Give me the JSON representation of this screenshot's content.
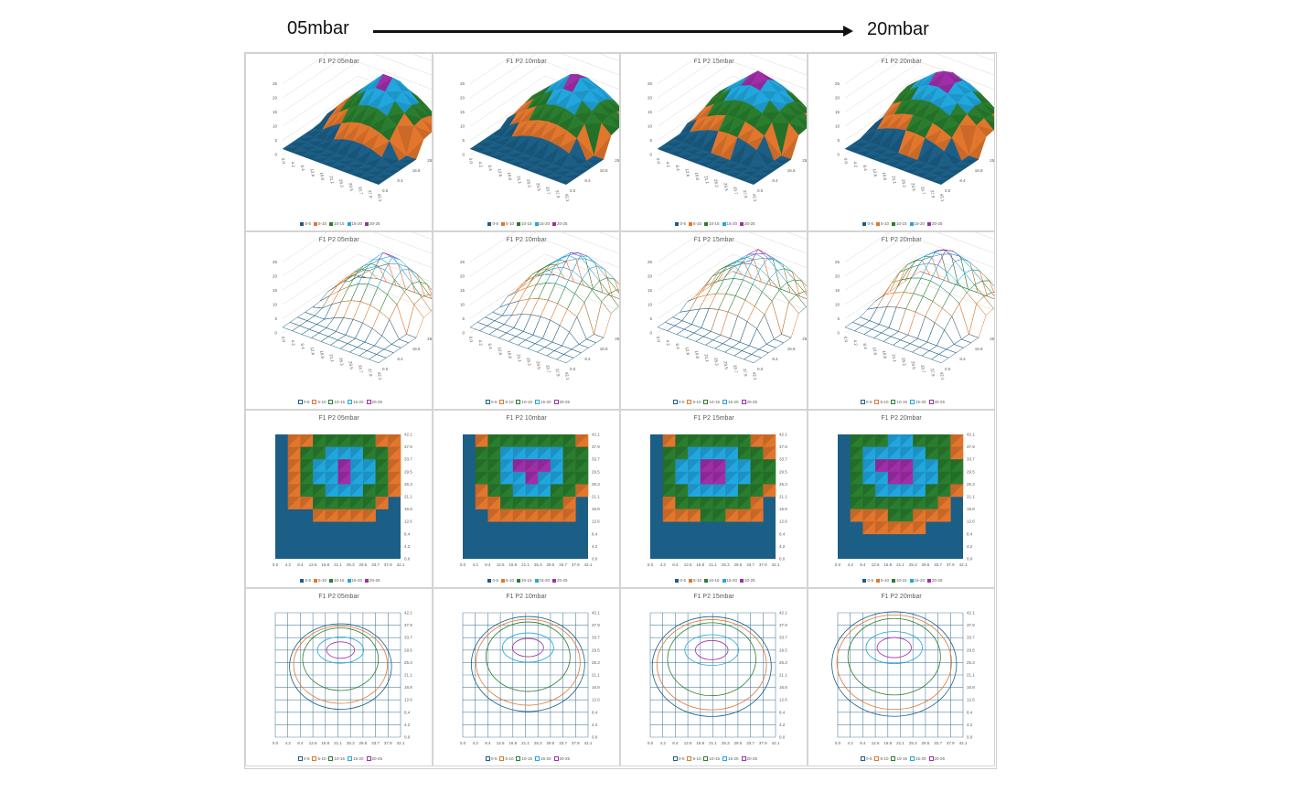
{
  "header": {
    "left_label": "05mbar",
    "right_label": "20mbar",
    "arrow": "arrow-right"
  },
  "colors": {
    "band_0_5": "#1b5e86",
    "band_5_10": "#e2762d",
    "band_10_15": "#2a7d2e",
    "band_15_20": "#22a6de",
    "band_20_25": "#a02ea8",
    "dark_shade": "#0f3b55",
    "grid_line": "#d9d9d9"
  },
  "legend": [
    "0-5",
    "5-10",
    "10-15",
    "15-20",
    "20-25"
  ],
  "panels": {
    "titles": [
      "F1 P2 05mbar",
      "F1 P2 10mbar",
      "F1 P2 15mbar",
      "F1 P2 20mbar"
    ]
  },
  "chart_data": [
    {
      "type": "surface-3d",
      "row": 1,
      "titles": [
        "F1 P2 05mbar",
        "F1 P2 10mbar",
        "F1 P2 15mbar",
        "F1 P2 20mbar"
      ],
      "z_ticks": [
        "0",
        "5",
        "10",
        "15",
        "20",
        "25"
      ],
      "x_ticks": [
        "0.0",
        "4.2",
        "8.4",
        "12.6",
        "16.8",
        "21.1",
        "25.3",
        "29.5",
        "33.7",
        "37.9",
        "42.1"
      ],
      "y_ticks": [
        "0.0",
        "8.4",
        "16.8",
        "25.3",
        "33.7",
        "42.1"
      ],
      "legend": [
        "0-5",
        "5-10",
        "10-15",
        "15-20",
        "20-25"
      ],
      "zlim": [
        0,
        25
      ]
    },
    {
      "type": "wireframe-3d",
      "row": 2,
      "titles": [
        "F1 P2 05mbar",
        "F1 P2 10mbar",
        "F1 P2 15mbar",
        "F1 P2 20mbar"
      ],
      "z_ticks": [
        "0",
        "5",
        "10",
        "15",
        "20",
        "25"
      ],
      "x_ticks": [
        "0.0",
        "4.2",
        "8.4",
        "12.6",
        "16.8",
        "21.1",
        "25.3",
        "29.5",
        "33.7",
        "37.9",
        "42.1"
      ],
      "y_ticks": [
        "0.0",
        "8.4",
        "16.8",
        "25.3",
        "33.7",
        "42.1"
      ],
      "legend": [
        "0-5",
        "5-10",
        "10-15",
        "15-20",
        "20-25"
      ],
      "zlim": [
        0,
        25
      ]
    },
    {
      "type": "heatmap",
      "subtype": "contour-filled",
      "row": 3,
      "titles": [
        "F1 P2 05mbar",
        "F1 P2 10mbar",
        "F1 P2 15mbar",
        "F1 P2 20mbar"
      ],
      "x_ticks": [
        "0.0",
        "4.2",
        "8.4",
        "12.6",
        "16.8",
        "21.1",
        "25.3",
        "29.5",
        "33.7",
        "37.9",
        "42.1"
      ],
      "y_ticks": [
        "0.0",
        "4.2",
        "8.4",
        "12.6",
        "16.8",
        "21.1",
        "25.3",
        "29.5",
        "33.7",
        "37.9",
        "42.1"
      ],
      "legend": [
        "0-5",
        "5-10",
        "10-15",
        "15-20",
        "20-25"
      ]
    },
    {
      "type": "heatmap",
      "subtype": "contour-lines",
      "row": 4,
      "titles": [
        "F1 P2 05mbar",
        "F1 P2 10mbar",
        "F1 P2 15mbar",
        "F1 P2 20mbar"
      ],
      "x_ticks": [
        "0.0",
        "4.2",
        "8.4",
        "12.6",
        "16.8",
        "21.1",
        "25.3",
        "29.5",
        "33.7",
        "37.9",
        "42.1"
      ],
      "y_ticks": [
        "0.0",
        "4.2",
        "8.4",
        "12.6",
        "16.8",
        "21.1",
        "25.3",
        "29.5",
        "33.7",
        "37.9",
        "42.1"
      ],
      "legend": [
        "0-5",
        "5-10",
        "10-15",
        "15-20",
        "20-25"
      ]
    }
  ]
}
